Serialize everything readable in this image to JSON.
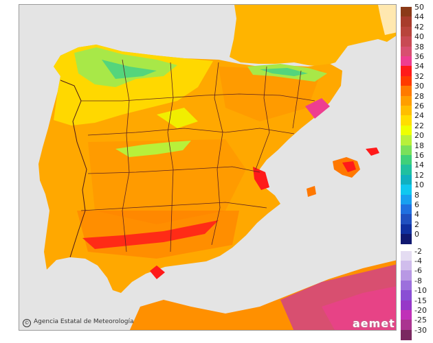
{
  "scale": {
    "labels": [
      "50",
      "44",
      "42",
      "40",
      "38",
      "36",
      "34",
      "32",
      "30",
      "28",
      "26",
      "24",
      "22",
      "20",
      "18",
      "16",
      "14",
      "12",
      "10",
      "8",
      "6",
      "4",
      "2",
      "0",
      "-2",
      "-4",
      "-6",
      "-8",
      "-10",
      "-15",
      "-20",
      "-25",
      "-30"
    ],
    "colors": [
      "#8b3a18",
      "#a83c2c",
      "#b8443c",
      "#c84a54",
      "#d84f70",
      "#ee3e90",
      "#ff1a1a",
      "#ff3a00",
      "#ff7a00",
      "#ff9e00",
      "#ffbe00",
      "#ffde00",
      "#eeff00",
      "#b8f03a",
      "#7ae05a",
      "#3fd07a",
      "#20c0a0",
      "#10b0c0",
      "#10c8f0",
      "#18a0f0",
      "#2070e0",
      "#2050c0",
      "#1030a0",
      "#101870",
      "#e4dcf2",
      "#d0bdec",
      "#b898e4",
      "#9c70dc",
      "#8a4ed4",
      "#9638c8",
      "#c030b8",
      "#aa3490",
      "#7a2860"
    ]
  },
  "agency": "Agencia Estatal de Meteorología",
  "logo": "aemet"
}
